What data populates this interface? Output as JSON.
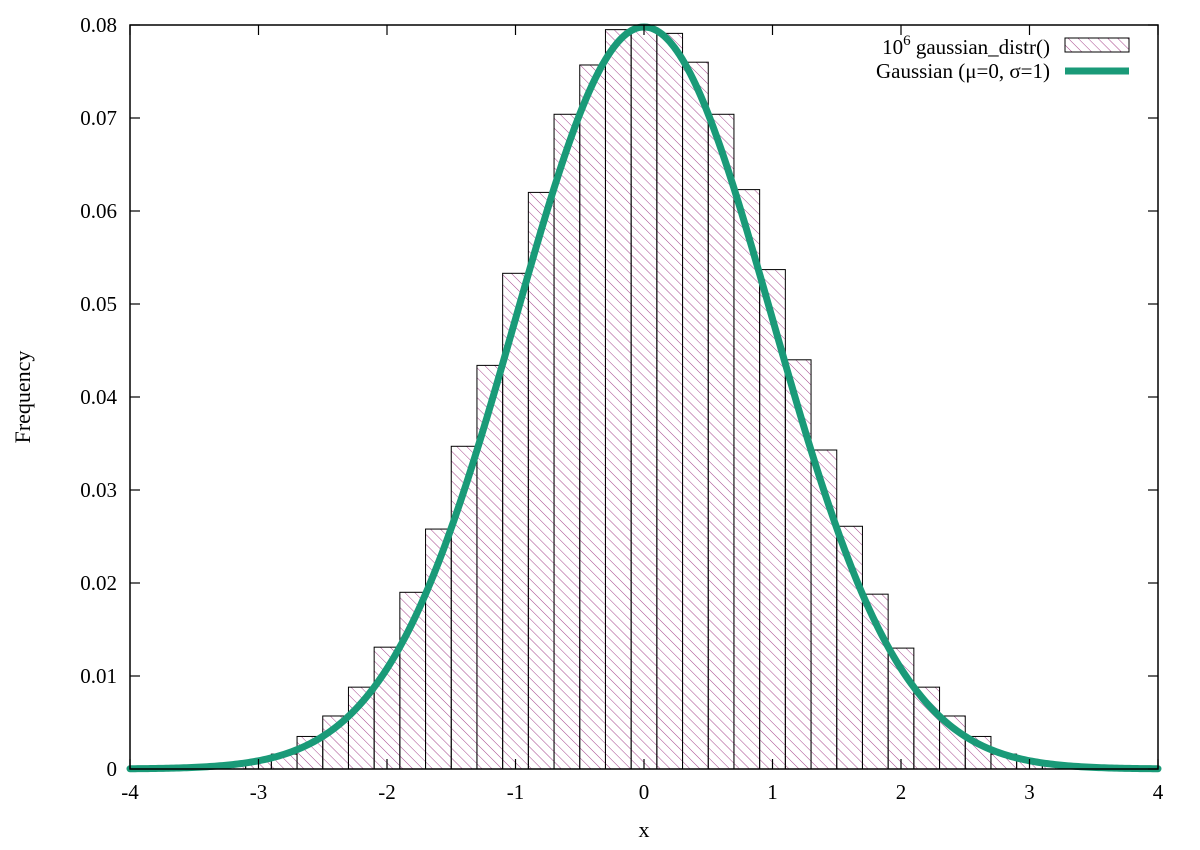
{
  "chart_data": {
    "type": "bar",
    "xlabel": "x",
    "ylabel": "Frequency",
    "xlim": [
      -4,
      4
    ],
    "ylim": [
      0,
      0.08
    ],
    "x_ticks": [
      "-4",
      "-3",
      "-2",
      "-1",
      "0",
      "1",
      "2",
      "3",
      "4"
    ],
    "y_ticks": [
      "0",
      "0.01",
      "0.02",
      "0.03",
      "0.04",
      "0.05",
      "0.06",
      "0.07",
      "0.08"
    ],
    "grid": false,
    "legend_position": "top-right",
    "bin_width": 0.2,
    "series": [
      {
        "name": "10^6 gaussian_distr()",
        "legend_base": "10",
        "legend_exp": "6",
        "legend_rest": " gaussian_distr()",
        "style": "hatched bars",
        "color": "#9b2f7f",
        "bin_centers": [
          -4.0,
          -3.8,
          -3.6,
          -3.4,
          -3.2,
          -3.0,
          -2.8,
          -2.6,
          -2.4,
          -2.2,
          -2.0,
          -1.8,
          -1.6,
          -1.4,
          -1.2,
          -1.0,
          -0.8,
          -0.6,
          -0.4,
          -0.2,
          0.0,
          0.2,
          0.4,
          0.6,
          0.8,
          1.0,
          1.2,
          1.4,
          1.6,
          1.8,
          2.0,
          2.2,
          2.4,
          2.6,
          2.8,
          3.0,
          3.2,
          3.4,
          3.6,
          3.8,
          4.0
        ],
        "values": [
          0.0001,
          0.0001,
          0.0002,
          0.0003,
          0.0005,
          0.0009,
          0.0016,
          0.0035,
          0.0057,
          0.0088,
          0.0131,
          0.019,
          0.0258,
          0.0347,
          0.0434,
          0.0533,
          0.062,
          0.0704,
          0.0757,
          0.0795,
          0.0797,
          0.0791,
          0.076,
          0.0704,
          0.0623,
          0.0537,
          0.044,
          0.0343,
          0.0261,
          0.0188,
          0.013,
          0.0088,
          0.0057,
          0.0035,
          0.0016,
          0.0009,
          0.0005,
          0.0003,
          0.0002,
          0.0001,
          0.0001
        ]
      },
      {
        "name": "Gaussian (μ=0, σ=1)",
        "style": "line",
        "color": "#1a9a78",
        "mu": 0,
        "sigma": 1
      }
    ]
  }
}
